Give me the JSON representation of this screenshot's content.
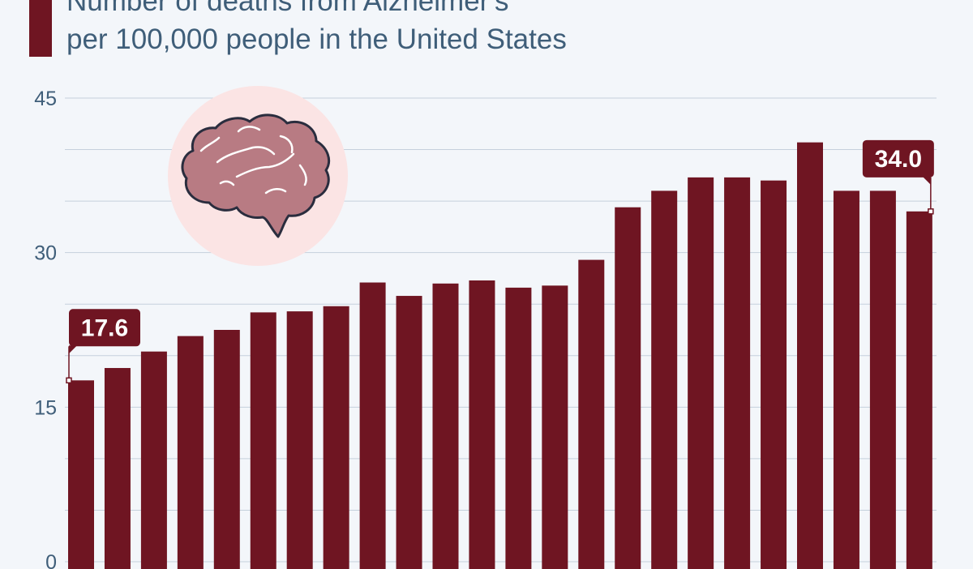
{
  "title": {
    "line1": "Number of deaths from Alzheimer's",
    "line2": "per 100,000 people in the United States"
  },
  "colors": {
    "bar": "#6f1522",
    "grid": "#c5d0dc",
    "axis_text": "#3f5e79",
    "icon_circle": "#fbe4e4",
    "brain_fill": "#b87b83",
    "brain_outline": "#2a2d3e"
  },
  "icon": "brain-icon",
  "chart_data": {
    "type": "bar",
    "ylim": [
      0,
      45
    ],
    "y_ticks": [
      0,
      15,
      30,
      45
    ],
    "grid": true,
    "values": [
      17.6,
      18.8,
      20.4,
      21.9,
      22.5,
      24.2,
      24.3,
      24.8,
      27.1,
      25.8,
      27.0,
      27.3,
      26.6,
      26.8,
      29.3,
      34.4,
      36.0,
      37.3,
      37.3,
      37.0,
      40.7,
      36.0,
      36.0,
      34.0
    ],
    "callouts": [
      {
        "index": 0,
        "label": "17.6"
      },
      {
        "index": 23,
        "label": "34.0"
      }
    ]
  }
}
